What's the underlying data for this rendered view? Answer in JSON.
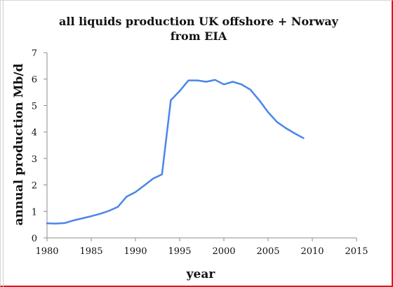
{
  "chart_data": {
    "type": "line",
    "title_lines": [
      "all liquids production UK offshore + Norway",
      "from EIA"
    ],
    "xlabel": "year",
    "ylabel": "annual production Mb/d",
    "xlim": [
      1980,
      2015
    ],
    "ylim": [
      0,
      7
    ],
    "x_ticks": [
      1980,
      1985,
      1990,
      1995,
      2000,
      2005,
      2010,
      2015
    ],
    "y_ticks": [
      0,
      1,
      2,
      3,
      4,
      5,
      6,
      7
    ],
    "grid": false,
    "line_color": "#4a86e8",
    "series": [
      {
        "x": [
          1980,
          1981,
          1982,
          1983,
          1984,
          1985,
          1986,
          1987,
          1988,
          1989,
          1990,
          1991,
          1992,
          1993,
          1994,
          1995,
          1996,
          1997,
          1998,
          1999,
          2000,
          2001,
          2002,
          2003,
          2004,
          2005,
          2006,
          2007,
          2008,
          2009
        ],
        "values": [
          0.55,
          0.54,
          0.56,
          0.66,
          0.74,
          0.82,
          0.91,
          1.02,
          1.17,
          1.56,
          1.73,
          1.98,
          2.24,
          2.4,
          5.2,
          5.55,
          5.95,
          5.95,
          5.9,
          5.97,
          5.8,
          5.9,
          5.8,
          5.6,
          5.2,
          4.75,
          4.38,
          4.15,
          3.95,
          3.77
        ]
      }
    ]
  }
}
